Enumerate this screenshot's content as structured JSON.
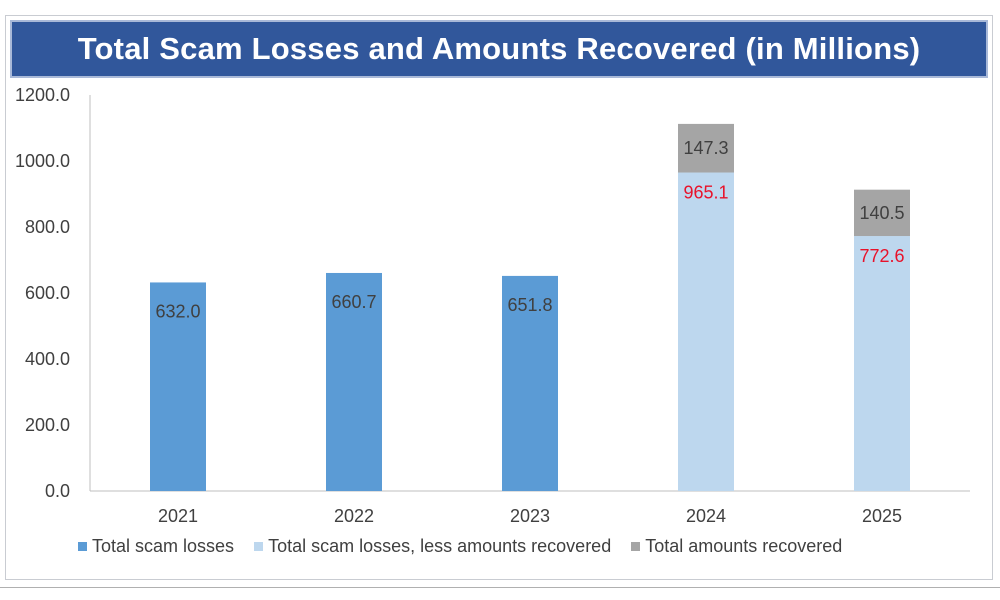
{
  "chart_data": {
    "type": "bar",
    "stacked": true,
    "title": "Total Scam Losses and Amounts Recovered (in Millions)",
    "categories": [
      "2021",
      "2022",
      "2023",
      "2024",
      "2025"
    ],
    "ylim": [
      0,
      1200
    ],
    "yticks": [
      "0.0",
      "200.0",
      "400.0",
      "600.0",
      "800.0",
      "1000.0",
      "1200.0"
    ],
    "grid": false,
    "legend_position": "bottom",
    "series": [
      {
        "name": "Total scam losses",
        "color": "#5b9bd5",
        "values": [
          632.0,
          660.7,
          651.8,
          null,
          null
        ],
        "labels": [
          "632.0",
          "660.7",
          "651.8",
          "",
          ""
        ]
      },
      {
        "name": "Total scam losses, less amounts recovered",
        "color": "#bdd7ee",
        "values": [
          null,
          null,
          null,
          965.1,
          772.6
        ],
        "labels": [
          "",
          "",
          "",
          "965.1",
          "772.6"
        ]
      },
      {
        "name": "Total amounts recovered",
        "color": "#a5a5a5",
        "values": [
          null,
          null,
          null,
          147.3,
          140.5
        ],
        "labels": [
          "",
          "",
          "",
          "147.3",
          "140.5"
        ]
      }
    ]
  }
}
